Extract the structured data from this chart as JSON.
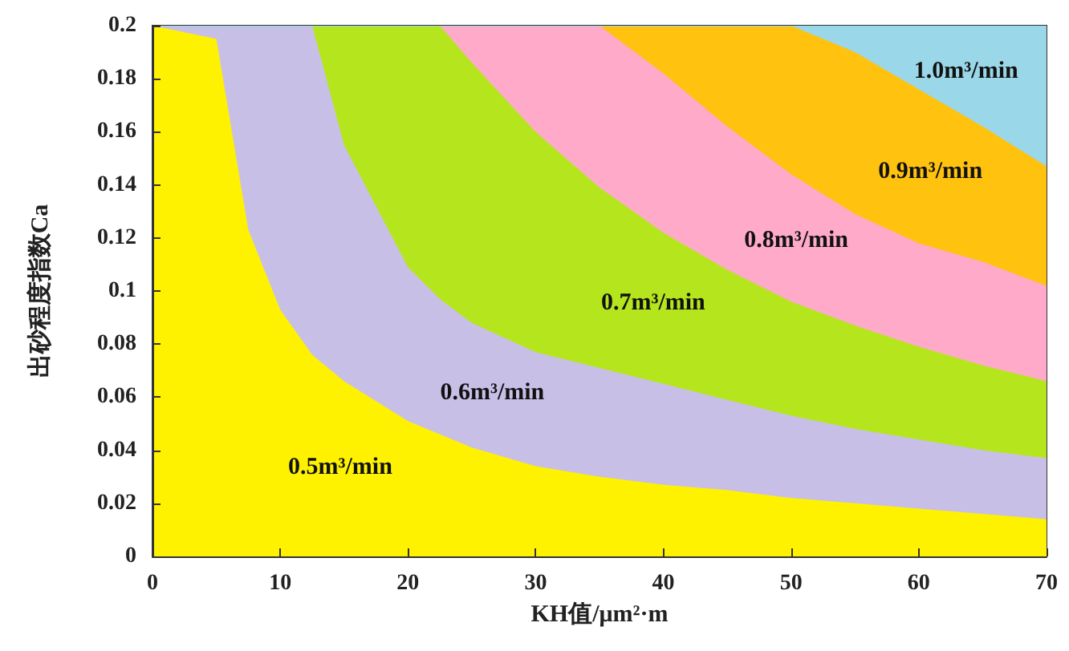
{
  "chart_data": {
    "type": "area",
    "stacked": true,
    "xlabel": "KH值/μm²·m",
    "ylabel": "出砂程度指数Ca",
    "xlim": [
      0,
      70
    ],
    "xticks": [
      0,
      10,
      20,
      30,
      40,
      50,
      60,
      70
    ],
    "ylim": [
      0,
      0.2
    ],
    "yticks": [
      0,
      0.02,
      0.04,
      0.06,
      0.08,
      0.1,
      0.12,
      0.14,
      0.16,
      0.18,
      0.2
    ],
    "x": [
      0,
      5,
      7.5,
      10,
      12.5,
      15,
      20,
      22.5,
      25,
      30,
      35,
      40,
      45,
      50,
      55,
      60,
      65,
      70
    ],
    "series": [
      {
        "name": "0.5m³/min",
        "color": "#fff200",
        "values": [
          0.2,
          0.195,
          0.123,
          0.093,
          0.076,
          0.066,
          0.051,
          0.046,
          0.041,
          0.034,
          0.03,
          0.027,
          0.025,
          0.022,
          0.02,
          0.018,
          0.016,
          0.014
        ]
      },
      {
        "name": "0.6m³/min",
        "color": "#c8bfe7",
        "values": [
          0,
          0.005,
          0.077,
          0.107,
          0.124,
          0.089,
          0.058,
          0.051,
          0.047,
          0.043,
          0.041,
          0.038,
          0.034,
          0.031,
          0.028,
          0.026,
          0.024,
          0.023
        ]
      },
      {
        "name": "0.7m³/min",
        "color": "#b5e61d",
        "values": [
          0,
          0,
          0,
          0,
          0,
          0.045,
          0.091,
          0.103,
          0.098,
          0.083,
          0.068,
          0.057,
          0.049,
          0.043,
          0.039,
          0.035,
          0.032,
          0.029
        ]
      },
      {
        "name": "0.8m³/min",
        "color": "#ffaac9",
        "values": [
          0,
          0,
          0,
          0,
          0,
          0,
          0,
          0,
          0.014,
          0.04,
          0.061,
          0.06,
          0.054,
          0.048,
          0.042,
          0.039,
          0.039,
          0.036
        ]
      },
      {
        "name": "0.9m³/min",
        "color": "#ffc20e",
        "values": [
          0,
          0,
          0,
          0,
          0,
          0,
          0,
          0,
          0,
          0,
          0,
          0.018,
          0.038,
          0.056,
          0.061,
          0.058,
          0.051,
          0.045
        ]
      },
      {
        "name": "1.0m³/min",
        "color": "#9ad7e8",
        "values": [
          0,
          0,
          0,
          0,
          0,
          0,
          0,
          0,
          0,
          0,
          0,
          0,
          0,
          0,
          0.01,
          0.024,
          0.038,
          0.053
        ]
      }
    ]
  }
}
